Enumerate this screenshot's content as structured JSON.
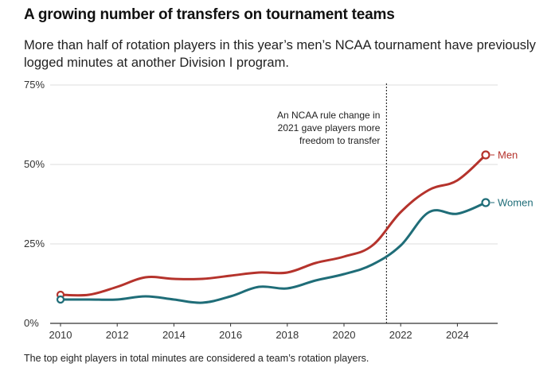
{
  "title": "A growing number of transfers on tournament teams",
  "subtitle": "More than half of rotation players in this year’s men’s NCAA tournament have previously logged minutes at another Division I program.",
  "footnote": "The top eight players in total minutes are considered a team’s rotation players.",
  "colors": {
    "men": "#b5332c",
    "women": "#1f6d78",
    "grid": "#dddddd",
    "axis": "#333333"
  },
  "chart_data": {
    "type": "line",
    "title": "A growing number of transfers on tournament teams",
    "xlabel": "",
    "ylabel": "",
    "xlim": [
      2010,
      2025
    ],
    "ylim": [
      0,
      75
    ],
    "x_ticks": [
      2010,
      2012,
      2014,
      2016,
      2018,
      2020,
      2022,
      2024
    ],
    "x_tick_labels": [
      "2010",
      "2012",
      "2014",
      "2016",
      "2018",
      "2020",
      "2022",
      "2024"
    ],
    "y_ticks": [
      0,
      25,
      50,
      75
    ],
    "y_tick_labels": [
      "0%",
      "25%",
      "50%",
      "75%"
    ],
    "grid": true,
    "x": [
      2010,
      2011,
      2012,
      2013,
      2014,
      2015,
      2016,
      2017,
      2018,
      2019,
      2020,
      2021,
      2022,
      2023,
      2024,
      2025
    ],
    "series": [
      {
        "name": "Men",
        "color": "#b5332c",
        "values": [
          9,
          9,
          11.5,
          14.5,
          14,
          14,
          15,
          16,
          16,
          19,
          21,
          24.5,
          35,
          42,
          45,
          53
        ]
      },
      {
        "name": "Women",
        "color": "#1f6d78",
        "values": [
          7.5,
          7.5,
          7.5,
          8.5,
          7.5,
          6.5,
          8.5,
          11.5,
          11,
          13.5,
          15.5,
          18.5,
          24.5,
          35,
          34.5,
          38
        ]
      }
    ],
    "annotation": {
      "x": 2021.5,
      "lines": [
        "An NCAA rule change in",
        "2021 gave players more",
        "freedom to transfer"
      ]
    }
  }
}
